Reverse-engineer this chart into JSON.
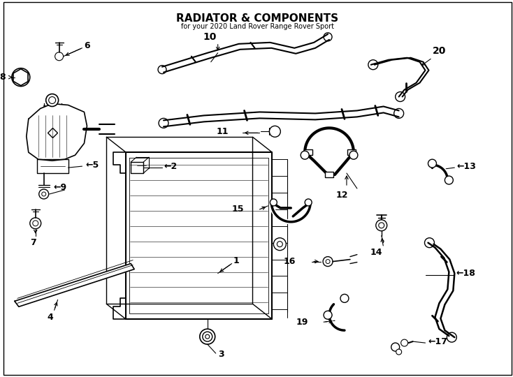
{
  "title": "RADIATOR & COMPONENTS",
  "subtitle": "for your 2020 Land Rover Range Rover Sport",
  "background_color": "#ffffff",
  "line_color": "#000000",
  "figsize": [
    7.34,
    5.4
  ],
  "dpi": 100
}
